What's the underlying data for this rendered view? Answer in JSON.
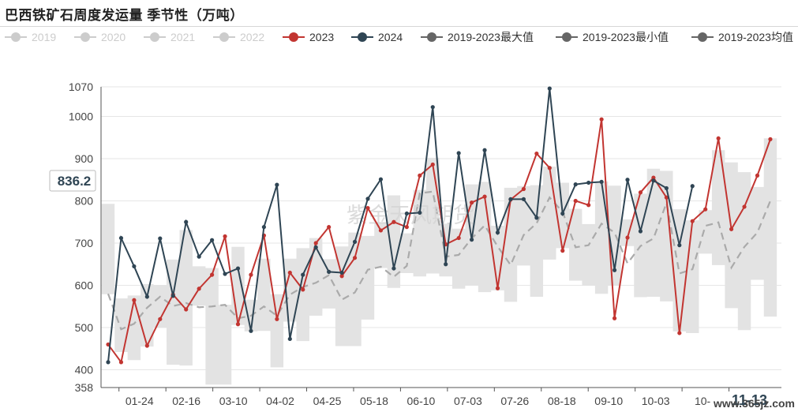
{
  "title": "巴西铁矿石周度发运量 季节性（万吨）",
  "cursor_value": "836.2",
  "watermark_text": "紫金天风期货",
  "corner_watermark": "www.365jz.com",
  "colors": {
    "inactive": "#cccccc",
    "s2023": "#c23531",
    "s2024": "#2f4554",
    "stat": "#666666",
    "band": "#e3e3e3",
    "mean_line": "#aaaaaa",
    "grid": "#e6e6e6",
    "axis": "#555555"
  },
  "legend": [
    {
      "label": "2019",
      "active": false
    },
    {
      "label": "2020",
      "active": false
    },
    {
      "label": "2021",
      "active": false
    },
    {
      "label": "2022",
      "active": false
    },
    {
      "label": "2023",
      "active": true,
      "color": "#c23531"
    },
    {
      "label": "2024",
      "active": true,
      "color": "#2f4554"
    },
    {
      "label": "2019-2023最大值",
      "active": true,
      "color": "#666666"
    },
    {
      "label": "2019-2023最小值",
      "active": true,
      "color": "#666666"
    },
    {
      "label": "2019-2023均值",
      "active": true,
      "color": "#666666"
    }
  ],
  "chart_data": {
    "type": "line",
    "title": "巴西铁矿石周度发运量 季节性（万吨）",
    "ylim": [
      358,
      1070
    ],
    "y_ticks": [
      358,
      400,
      500,
      600,
      700,
      800,
      900,
      1000,
      1070
    ],
    "x_tick_labels": [
      "01-24",
      "02-16",
      "03-10",
      "04-02",
      "04-25",
      "05-18",
      "06-10",
      "07-03",
      "07-26",
      "08-18",
      "09-10",
      "10-03",
      "10-",
      "11-13"
    ],
    "x_count": 52,
    "series": [
      {
        "name": "2023",
        "values": [
          460,
          418,
          565,
          457,
          520,
          578,
          543,
          592,
          625,
          716,
          508,
          625,
          718,
          520,
          630,
          590,
          700,
          738,
          622,
          665,
          783,
          730,
          750,
          738,
          860,
          886,
          697,
          712,
          796,
          810,
          593,
          803,
          828,
          912,
          878,
          682,
          800,
          790,
          993,
          522,
          713,
          820,
          855,
          808,
          487,
          752,
          780,
          948,
          733,
          786,
          860,
          946
        ]
      },
      {
        "name": "2024",
        "values": [
          418,
          712,
          645,
          573,
          711,
          575,
          750,
          668,
          707,
          627,
          640,
          492,
          738,
          838,
          473,
          625,
          690,
          632,
          630,
          703,
          805,
          851,
          640,
          770,
          772,
          1022,
          650,
          913,
          708,
          920,
          725,
          804,
          804,
          760,
          1066,
          770,
          839,
          843,
          845,
          636,
          850,
          728,
          848,
          830,
          695,
          835
        ]
      },
      {
        "name": "2019-2023最大值",
        "values": [
          793,
          569,
          576,
          603,
          601,
          661,
          731,
          645,
          641,
          554,
          691,
          566,
          663,
          579,
          663,
          688,
          712,
          662,
          692,
          725,
          717,
          749,
          813,
          723,
          826,
          902,
          746,
          734,
          839,
          845,
          741,
          831,
          835,
          837,
          881,
          843,
          781,
          745,
          846,
          836,
          756,
          817,
          876,
          871,
          780,
          754,
          778,
          920,
          891,
          868,
          833,
          948
        ]
      },
      {
        "name": "2019-2023最小值",
        "values": [
          579,
          442,
          423,
          455,
          500,
          412,
          410,
          552,
          365,
          365,
          506,
          491,
          492,
          406,
          514,
          468,
          528,
          545,
          456,
          456,
          519,
          641,
          594,
          629,
          621,
          628,
          621,
          592,
          600,
          584,
          588,
          561,
          647,
          573,
          661,
          688,
          611,
          599,
          580,
          599,
          693,
          572,
          573,
          562,
          491,
          487,
          675,
          648,
          546,
          494,
          613,
          526
        ]
      },
      {
        "name": "2019-2023均值",
        "values": [
          580,
          496,
          509,
          547,
          573,
          551,
          558,
          548,
          550,
          554,
          522,
          528,
          550,
          528,
          578,
          596,
          606,
          624,
          566,
          583,
          637,
          644,
          620,
          646,
          818,
          822,
          668,
          672,
          711,
          742,
          692,
          648,
          719,
          747,
          808,
          774,
          690,
          695,
          746,
          725,
          652,
          693,
          711,
          795,
          628,
          638,
          741,
          749,
          642,
          691,
          725,
          800
        ]
      }
    ]
  }
}
